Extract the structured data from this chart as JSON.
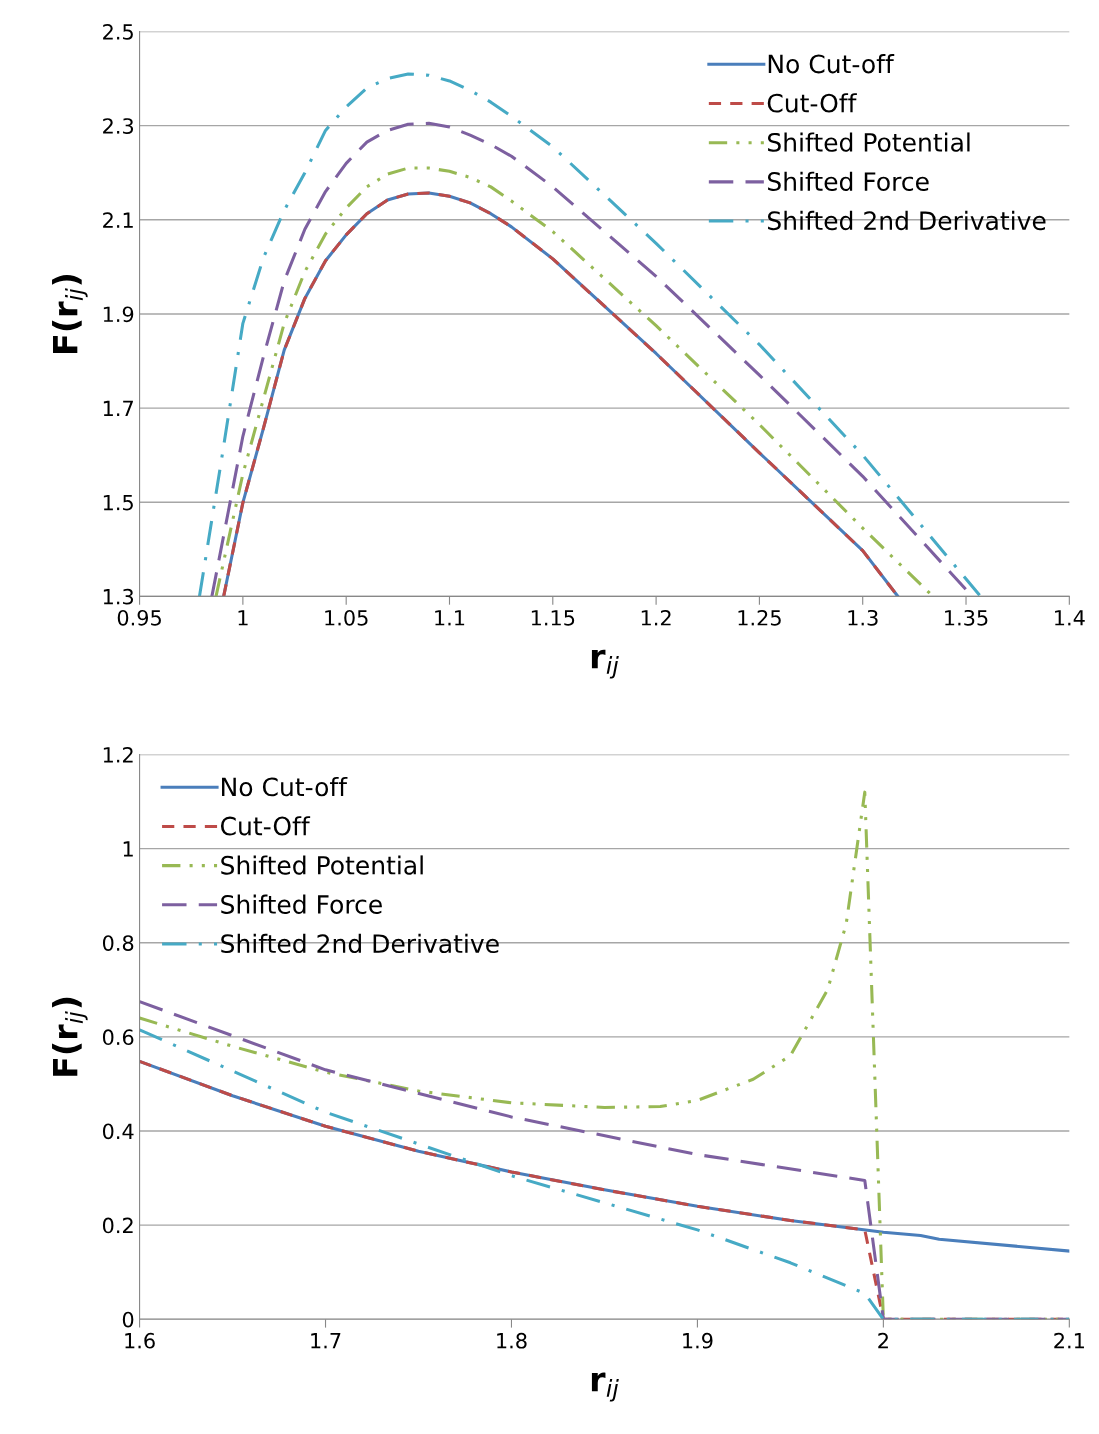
{
  "chart_data": [
    {
      "type": "line",
      "xlabel": "r$_{ij}$",
      "ylabel": "F(r$_{ij}$)",
      "xlim": [
        0.95,
        1.4
      ],
      "xticks": [
        0.95,
        1,
        1.05,
        1.1,
        1.15,
        1.2,
        1.25,
        1.3,
        1.35,
        1.4
      ],
      "ylim": [
        1.3,
        2.5
      ],
      "yticks": [
        1.3,
        1.5,
        1.7,
        1.9,
        2.1,
        2.3,
        2.5
      ],
      "grid": "y",
      "legend": "top right",
      "series": [
        {
          "name": "No Cut-off",
          "color": "#4a7ebb",
          "line_style": "solid",
          "x": [
            0.9907,
            1.0,
            1.01,
            1.02,
            1.03,
            1.04,
            1.05,
            1.06,
            1.07,
            1.08,
            1.09,
            1.1,
            1.11,
            1.12,
            1.13,
            1.15,
            1.2,
            1.25,
            1.3,
            1.317
          ],
          "values": [
            1.3,
            1.499,
            1.658,
            1.823,
            1.933,
            2.013,
            2.068,
            2.113,
            2.142,
            2.155,
            2.157,
            2.15,
            2.136,
            2.113,
            2.085,
            2.017,
            1.816,
            1.605,
            1.397,
            1.3
          ]
        },
        {
          "name": "Cut-Off",
          "color": "#be4b48",
          "line_style": "dashed",
          "x": [
            0.9907,
            1.0,
            1.01,
            1.02,
            1.03,
            1.04,
            1.05,
            1.06,
            1.07,
            1.08,
            1.09,
            1.1,
            1.11,
            1.12,
            1.13,
            1.15,
            1.2,
            1.25,
            1.3,
            1.317
          ],
          "values": [
            1.3,
            1.499,
            1.658,
            1.823,
            1.933,
            2.013,
            2.068,
            2.113,
            2.142,
            2.155,
            2.157,
            2.15,
            2.136,
            2.113,
            2.085,
            2.017,
            1.816,
            1.605,
            1.397,
            1.3
          ]
        },
        {
          "name": "Shifted Potential",
          "color": "#98b954",
          "line_style": "dashdotdot",
          "x": [
            0.987,
            1.0,
            1.01,
            1.02,
            1.03,
            1.04,
            1.05,
            1.06,
            1.07,
            1.08,
            1.09,
            1.1,
            1.11,
            1.12,
            1.13,
            1.15,
            1.2,
            1.25,
            1.3,
            1.334
          ],
          "values": [
            1.3,
            1.56,
            1.72,
            1.88,
            1.99,
            2.07,
            2.125,
            2.17,
            2.197,
            2.21,
            2.21,
            2.203,
            2.19,
            2.17,
            2.14,
            2.075,
            1.875,
            1.665,
            1.445,
            1.3
          ]
        },
        {
          "name": "Shifted Force",
          "color": "#7d60a0",
          "line_style": "longdash",
          "x": [
            0.985,
            1.0,
            1.01,
            1.02,
            1.03,
            1.04,
            1.05,
            1.06,
            1.07,
            1.08,
            1.09,
            1.1,
            1.11,
            1.12,
            1.13,
            1.15,
            1.2,
            1.25,
            1.3,
            1.353
          ],
          "values": [
            1.3,
            1.64,
            1.81,
            1.97,
            2.08,
            2.16,
            2.22,
            2.265,
            2.29,
            2.303,
            2.305,
            2.297,
            2.28,
            2.26,
            2.235,
            2.17,
            1.98,
            1.77,
            1.555,
            1.3
          ]
        },
        {
          "name": "Shifted 2nd Derivative",
          "color": "#46aac5",
          "line_style": "dashdot",
          "x": [
            0.979,
            0.99,
            1.0,
            1.01,
            1.02,
            1.03,
            1.04,
            1.05,
            1.06,
            1.07,
            1.08,
            1.09,
            1.1,
            1.11,
            1.12,
            1.13,
            1.15,
            1.2,
            1.25,
            1.3,
            1.357
          ],
          "values": [
            1.3,
            1.6,
            1.88,
            2.02,
            2.12,
            2.2,
            2.29,
            2.34,
            2.38,
            2.4,
            2.41,
            2.407,
            2.395,
            2.375,
            2.35,
            2.32,
            2.255,
            2.05,
            1.835,
            1.6,
            1.3
          ]
        }
      ]
    },
    {
      "type": "line",
      "xlabel": "r$_{ij}$",
      "ylabel": "F(r$_{ij}$)",
      "xlim": [
        1.6,
        2.1
      ],
      "xticks": [
        1.6,
        1.7,
        1.8,
        1.9,
        2,
        2.1
      ],
      "ylim": [
        0,
        1.2
      ],
      "yticks": [
        0,
        0.2,
        0.4,
        0.6,
        0.8,
        1,
        1.2
      ],
      "grid": "y",
      "legend": "top left",
      "series": [
        {
          "name": "No Cut-off",
          "color": "#4a7ebb",
          "line_style": "solid",
          "x": [
            1.6,
            1.65,
            1.7,
            1.75,
            1.8,
            1.85,
            1.9,
            1.95,
            2.0,
            2.02,
            2.03,
            2.1
          ],
          "values": [
            0.548,
            0.475,
            0.41,
            0.357,
            0.313,
            0.275,
            0.24,
            0.21,
            0.185,
            0.178,
            0.17,
            0.145
          ]
        },
        {
          "name": "Cut-Off",
          "color": "#be4b48",
          "line_style": "dashed",
          "x": [
            1.6,
            1.65,
            1.7,
            1.75,
            1.8,
            1.85,
            1.9,
            1.95,
            1.99,
            2.0,
            2.1
          ],
          "values": [
            0.548,
            0.475,
            0.41,
            0.357,
            0.313,
            0.275,
            0.24,
            0.21,
            0.19,
            0,
            0
          ]
        },
        {
          "name": "Shifted Potential",
          "color": "#98b954",
          "line_style": "dashdotdot",
          "x": [
            1.6,
            1.65,
            1.7,
            1.75,
            1.8,
            1.85,
            1.88,
            1.9,
            1.93,
            1.95,
            1.97,
            1.98,
            1.99,
            2.0,
            2.1
          ],
          "values": [
            0.64,
            0.58,
            0.525,
            0.485,
            0.46,
            0.45,
            0.452,
            0.465,
            0.51,
            0.56,
            0.7,
            0.84,
            1.12,
            0,
            0
          ]
        },
        {
          "name": "Shifted Force",
          "color": "#7d60a0",
          "line_style": "longdash",
          "x": [
            1.6,
            1.7,
            1.8,
            1.9,
            1.99,
            2.0,
            2.1
          ],
          "values": [
            0.675,
            0.53,
            0.43,
            0.35,
            0.295,
            0,
            0
          ]
        },
        {
          "name": "Shifted 2nd Derivative",
          "color": "#46aac5",
          "line_style": "dashdot",
          "x": [
            1.6,
            1.7,
            1.8,
            1.9,
            1.95,
            1.99,
            2.0,
            2.1
          ],
          "values": [
            0.615,
            0.44,
            0.305,
            0.19,
            0.12,
            0.055,
            0,
            0
          ]
        }
      ]
    }
  ]
}
